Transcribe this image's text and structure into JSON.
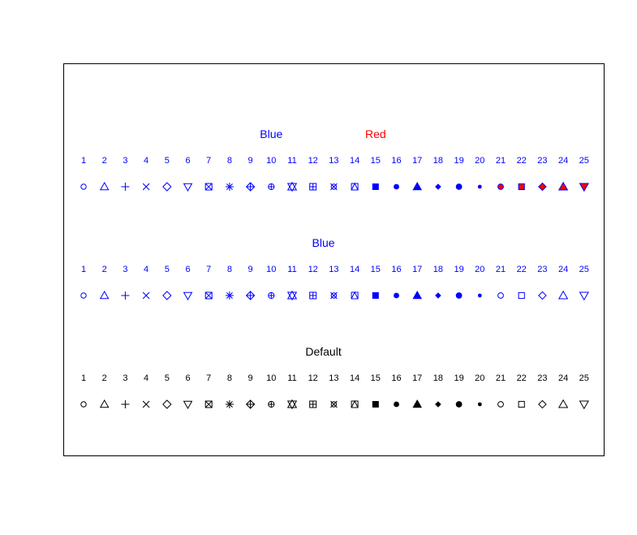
{
  "chart_data": {
    "type": "scatter",
    "title": "",
    "xlabel": "",
    "ylabel": "",
    "grid": false,
    "xlim": [
      0.5,
      26
    ],
    "ylim": [
      0,
      4
    ],
    "colors": {
      "blue": "#0000FF",
      "red": "#FF0000",
      "black": "#000000"
    },
    "rows": [
      {
        "key": "blue_red",
        "titles": [
          {
            "text": "Blue",
            "color": "#0000FF",
            "x": 10
          },
          {
            "text": "Red",
            "color": "#FF0000",
            "x": 15
          }
        ],
        "label_color": "#0000FF",
        "symbol_color": "#0000FF",
        "fill_color": "#FF0000",
        "labels": [
          "1",
          "2",
          "3",
          "4",
          "5",
          "6",
          "7",
          "8",
          "9",
          "10",
          "11",
          "12",
          "13",
          "14",
          "15",
          "16",
          "17",
          "18",
          "19",
          "20",
          "21",
          "22",
          "23",
          "24",
          "25"
        ],
        "pch": [
          1,
          2,
          3,
          4,
          5,
          6,
          7,
          8,
          9,
          10,
          11,
          12,
          13,
          14,
          15,
          16,
          17,
          18,
          19,
          20,
          21,
          22,
          23,
          24,
          25
        ]
      },
      {
        "key": "blue",
        "titles": [
          {
            "text": "Blue",
            "color": "#0000FF",
            "x": 12.5
          }
        ],
        "label_color": "#0000FF",
        "symbol_color": "#0000FF",
        "fill_color": null,
        "labels": [
          "1",
          "2",
          "3",
          "4",
          "5",
          "6",
          "7",
          "8",
          "9",
          "10",
          "11",
          "12",
          "13",
          "14",
          "15",
          "16",
          "17",
          "18",
          "19",
          "20",
          "21",
          "22",
          "23",
          "24",
          "25"
        ],
        "pch": [
          1,
          2,
          3,
          4,
          5,
          6,
          7,
          8,
          9,
          10,
          11,
          12,
          13,
          14,
          15,
          16,
          17,
          18,
          19,
          20,
          21,
          22,
          23,
          24,
          25
        ]
      },
      {
        "key": "default",
        "titles": [
          {
            "text": "Default",
            "color": "#000000",
            "x": 12.5
          }
        ],
        "label_color": "#000000",
        "symbol_color": "#000000",
        "fill_color": null,
        "labels": [
          "1",
          "2",
          "3",
          "4",
          "5",
          "6",
          "7",
          "8",
          "9",
          "10",
          "11",
          "12",
          "13",
          "14",
          "15",
          "16",
          "17",
          "18",
          "19",
          "20",
          "21",
          "22",
          "23",
          "24",
          "25"
        ],
        "pch": [
          1,
          2,
          3,
          4,
          5,
          6,
          7,
          8,
          9,
          10,
          11,
          12,
          13,
          14,
          15,
          16,
          17,
          18,
          19,
          20,
          21,
          22,
          23,
          24,
          25
        ]
      }
    ]
  }
}
